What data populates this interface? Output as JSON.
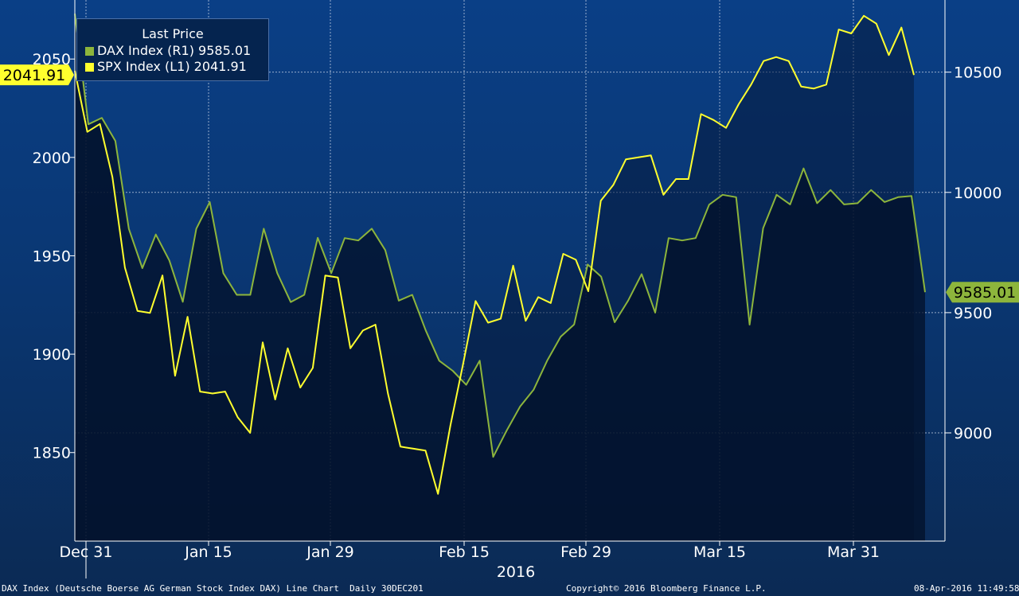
{
  "legend": {
    "title": "Last Price",
    "items": [
      {
        "name": "DAX Index",
        "axis": "(R1)",
        "last": "9585.01",
        "color": "#8db53c"
      },
      {
        "name": "SPX Index",
        "axis": "(L1)",
        "last": "2041.91",
        "color": "#ffff2e"
      }
    ]
  },
  "footer": {
    "left": "DAX Index (Deutsche Boerse AG German Stock Index DAX) Line Chart  Daily 30DEC201",
    "center": "Copyright© 2016 Bloomberg Finance L.P.",
    "right": "08-Apr-2016 11:49:58"
  },
  "chart_data": {
    "type": "line",
    "x_tick_labels": [
      "Dec 31",
      "Jan 15",
      "Jan 29",
      "Feb 15",
      "Feb 29",
      "Mar 15",
      "Mar 31"
    ],
    "x_year_label": "2016",
    "left_axis": {
      "ticks": [
        1850,
        1900,
        1950,
        2000,
        2050
      ],
      "ylim": [
        1805,
        2080
      ]
    },
    "right_axis": {
      "ticks": [
        9000,
        9500,
        10000,
        10500
      ],
      "ylim": [
        8550,
        10800
      ]
    },
    "grid": true,
    "last_value_tags": {
      "left": "2041.91",
      "right": "9585.01"
    },
    "series": [
      {
        "name": "DAX Index",
        "axis": "right",
        "color": "#8db53c",
        "values": [
          10743,
          10283,
          10310,
          10214,
          9849,
          9685,
          9825,
          9717,
          9545,
          9849,
          9960,
          9664,
          9574,
          9574,
          9849,
          9664,
          9544,
          9574,
          9811,
          9664,
          9810,
          9800,
          9849,
          9760,
          9550,
          9574,
          9426,
          9300,
          9258,
          9200,
          9300,
          8900,
          9010,
          9110,
          9180,
          9300,
          9400,
          9451,
          9700,
          9650,
          9460,
          9550,
          9660,
          9500,
          9810,
          9800,
          9810,
          9949,
          9990,
          9980,
          9450,
          9851,
          9990,
          9950,
          10100,
          9955,
          10010,
          9950,
          9955,
          10010,
          9960,
          9980,
          9985,
          9585
        ]
      },
      {
        "name": "SPX Index",
        "axis": "left",
        "color": "#ffff2e",
        "values": [
          2044,
          2013,
          2017,
          1990,
          1944,
          1922,
          1921,
          1940,
          1889,
          1919,
          1881,
          1880,
          1881,
          1868,
          1860,
          1906,
          1877,
          1903,
          1883,
          1893,
          1940,
          1939,
          1903,
          1912,
          1915,
          1880,
          1853,
          1852,
          1851,
          1829,
          1864,
          1895,
          1927,
          1916,
          1918,
          1945,
          1917,
          1929,
          1926,
          1951,
          1948,
          1932,
          1978,
          1986,
          1999,
          2000,
          2001,
          1981,
          1989,
          1989,
          2022,
          2019,
          2015,
          2027,
          2037,
          2049,
          2051,
          2049,
          2036,
          2035,
          2037,
          2065,
          2063,
          2072,
          2068,
          2052,
          2066,
          2041.91
        ]
      }
    ]
  }
}
